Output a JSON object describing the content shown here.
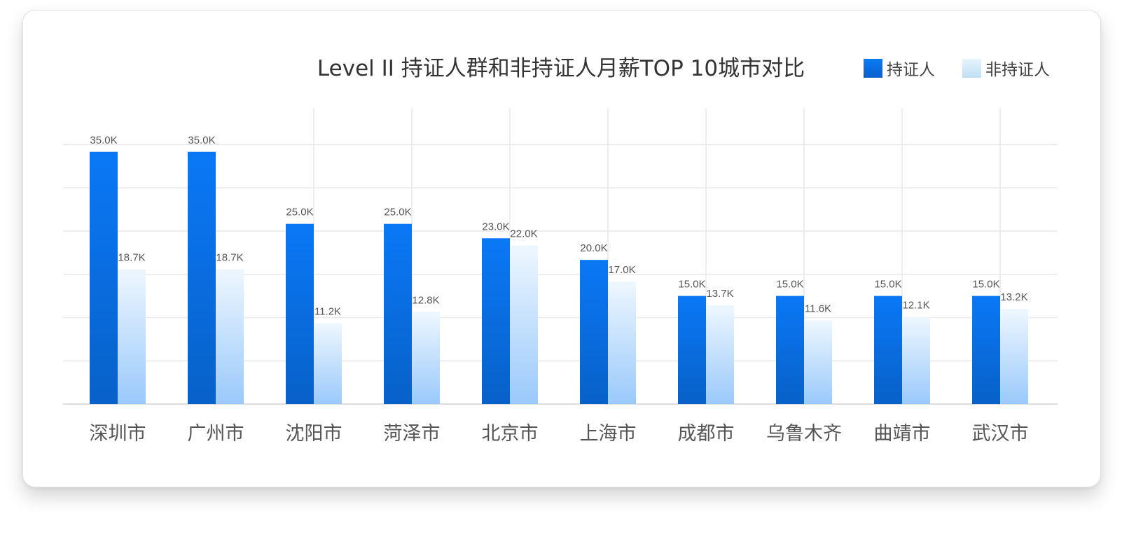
{
  "chart_data": {
    "type": "bar",
    "title": "Level II 持证人群和非持证人月薪TOP 10城市对比",
    "categories": [
      "深圳市",
      "广州市",
      "沈阳市",
      "菏泽市",
      "北京市",
      "上海市",
      "成都市",
      "乌鲁木齐",
      "曲靖市",
      "武汉市"
    ],
    "series": [
      {
        "name": "持证人",
        "values": [
          35.0,
          35.0,
          25.0,
          25.0,
          23.0,
          20.0,
          15.0,
          15.0,
          15.0,
          15.0
        ],
        "labels": [
          "35.0K",
          "35.0K",
          "25.0K",
          "25.0K",
          "23.0K",
          "20.0K",
          "15.0K",
          "15.0K",
          "15.0K",
          "15.0K"
        ],
        "color": "#0a78f0"
      },
      {
        "name": "非持证人",
        "values": [
          18.7,
          18.7,
          11.2,
          12.8,
          22.0,
          17.0,
          13.7,
          11.6,
          12.1,
          13.2
        ],
        "labels": [
          "18.7K",
          "18.7K",
          "11.2K",
          "12.8K",
          "22.0K",
          "17.0K",
          "13.7K",
          "11.6K",
          "12.1K",
          "13.2K"
        ],
        "color": "#9ccbfb"
      }
    ],
    "ylim": [
      0,
      41
    ],
    "grid": true,
    "legend_position": "top-right",
    "xlabel": "",
    "ylabel": ""
  }
}
